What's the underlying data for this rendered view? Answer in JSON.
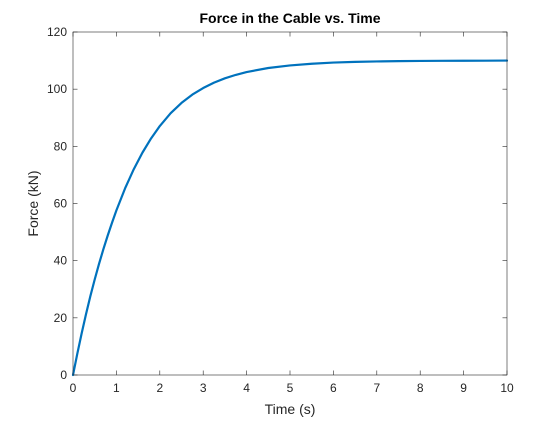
{
  "chart_data": {
    "type": "line",
    "title": "Force in the Cable vs. Time",
    "xlabel": "Time (s)",
    "ylabel": "Force (kN)",
    "xlim": [
      0,
      10
    ],
    "ylim": [
      0,
      120
    ],
    "xticks": [
      0,
      1,
      2,
      3,
      4,
      5,
      6,
      7,
      8,
      9,
      10
    ],
    "yticks": [
      0,
      20,
      40,
      60,
      80,
      100,
      120
    ],
    "grid": false,
    "box": true,
    "series": [
      {
        "color": "#0072BD",
        "x": [
          0,
          0.1,
          0.2,
          0.3,
          0.4,
          0.5,
          0.6,
          0.7,
          0.8,
          0.9,
          1.0,
          1.2,
          1.4,
          1.6,
          1.8,
          2.0,
          2.25,
          2.5,
          2.75,
          3.0,
          3.25,
          3.5,
          3.75,
          4.0,
          4.5,
          5.0,
          5.5,
          6.0,
          6.5,
          7.0,
          7.5,
          8.0,
          8.5,
          9.0,
          9.5,
          10.0
        ],
        "y": [
          0,
          7.5,
          14.6,
          21.3,
          27.6,
          33.4,
          38.9,
          44.0,
          48.8,
          53.3,
          57.6,
          65.3,
          72.0,
          77.8,
          82.8,
          87.1,
          91.6,
          95.2,
          98.1,
          100.4,
          102.3,
          103.8,
          105.0,
          106.0,
          107.4,
          108.3,
          108.9,
          109.3,
          109.55,
          109.7,
          109.8,
          109.87,
          109.92,
          109.95,
          109.97,
          110.0
        ]
      }
    ]
  }
}
